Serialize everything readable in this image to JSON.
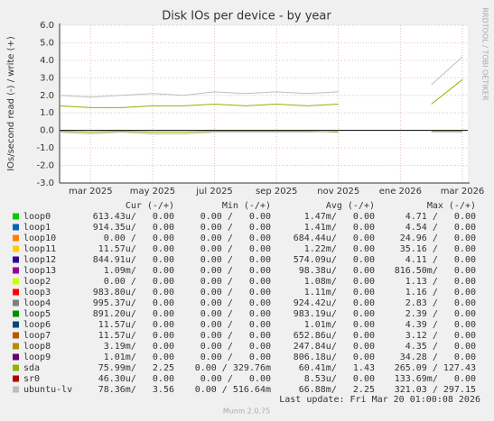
{
  "chart_data": {
    "type": "line",
    "title": "Disk IOs per device - by year",
    "y_label": "IOs/second read (-) / write (+)",
    "side_label": "RRDTOOL / TOBI OETIKER",
    "footer": "Munin 2.0.75",
    "last_update": "Last update: Fri Mar 20 01:00:08 2026",
    "grid": true,
    "ylim": [
      -3,
      6
    ],
    "yticks": [
      {
        "value": 6,
        "label": "6.0"
      },
      {
        "value": 5,
        "label": "5.0"
      },
      {
        "value": 4,
        "label": "4.0"
      },
      {
        "value": 3,
        "label": "3.0"
      },
      {
        "value": 2,
        "label": "2.0"
      },
      {
        "value": 1,
        "label": "1.0"
      },
      {
        "value": 0,
        "label": "0.0"
      },
      {
        "value": -1,
        "label": "-1.0"
      },
      {
        "value": -2,
        "label": "-2.0"
      },
      {
        "value": -3,
        "label": "-3.0"
      }
    ],
    "xlim": [
      "2025-02",
      "2026-03"
    ],
    "xticks": [
      {
        "value": "2025-03",
        "label": "mar 2025"
      },
      {
        "value": "2025-05",
        "label": "may 2025"
      },
      {
        "value": "2025-07",
        "label": "jul 2025"
      },
      {
        "value": "2025-09",
        "label": "sep 2025"
      },
      {
        "value": "2025-11",
        "label": "nov 2025"
      },
      {
        "value": "2026-01",
        "label": "ene 2026"
      },
      {
        "value": "2026-03",
        "label": "mar 2026"
      }
    ],
    "x": [
      "2025-02",
      "2025-03",
      "2025-04",
      "2025-05",
      "2025-06",
      "2025-07",
      "2025-08",
      "2025-09",
      "2025-10",
      "2025-11",
      "2025-12",
      "2026-01",
      "2026-02",
      "2026-03"
    ],
    "columns": [
      "Cur (-/+)",
      "Min (-/+)",
      "Avg (-/+)",
      "Max (-/+)"
    ],
    "series": [
      {
        "name": "loop0",
        "color": "#00cc00",
        "cells": [
          "613.43u/   0.00",
          "0.00 /   0.00",
          "1.47m/   0.00",
          "4.71 /   0.00"
        ]
      },
      {
        "name": "loop1",
        "color": "#0066b3",
        "cells": [
          "914.35u/   0.00",
          "0.00 /   0.00",
          "1.41m/   0.00",
          "4.54 /   0.00"
        ]
      },
      {
        "name": "loop10",
        "color": "#ff8000",
        "cells": [
          "0.00 /   0.00",
          "0.00 /   0.00",
          "684.44u/   0.00",
          "24.96 /   0.00"
        ]
      },
      {
        "name": "loop11",
        "color": "#ffcc00",
        "cells": [
          "11.57u/   0.00",
          "0.00 /   0.00",
          "1.22m/   0.00",
          "35.16 /   0.00"
        ]
      },
      {
        "name": "loop12",
        "color": "#330099",
        "cells": [
          "844.91u/   0.00",
          "0.00 /   0.00",
          "574.09u/   0.00",
          "4.11 /   0.00"
        ]
      },
      {
        "name": "loop13",
        "color": "#990099",
        "cells": [
          "1.09m/   0.00",
          "0.00 /   0.00",
          "98.38u/   0.00",
          "816.50m/   0.00"
        ]
      },
      {
        "name": "loop2",
        "color": "#ccff00",
        "cells": [
          "0.00 /   0.00",
          "0.00 /   0.00",
          "1.08m/   0.00",
          "1.13 /   0.00"
        ]
      },
      {
        "name": "loop3",
        "color": "#ff0000",
        "cells": [
          "983.80u/   0.00",
          "0.00 /   0.00",
          "1.11m/   0.00",
          "1.16 /   0.00"
        ]
      },
      {
        "name": "loop4",
        "color": "#808080",
        "cells": [
          "995.37u/   0.00",
          "0.00 /   0.00",
          "924.42u/   0.00",
          "2.83 /   0.00"
        ]
      },
      {
        "name": "loop5",
        "color": "#008f00",
        "cells": [
          "891.20u/   0.00",
          "0.00 /   0.00",
          "983.19u/   0.00",
          "2.39 /   0.00"
        ]
      },
      {
        "name": "loop6",
        "color": "#00487d",
        "cells": [
          "11.57u/   0.00",
          "0.00 /   0.00",
          "1.01m/   0.00",
          "4.39 /   0.00"
        ]
      },
      {
        "name": "loop7",
        "color": "#b35a00",
        "cells": [
          "11.57u/   0.00",
          "0.00 /   0.00",
          "652.86u/   0.00",
          "3.12 /   0.00"
        ]
      },
      {
        "name": "loop8",
        "color": "#b38f00",
        "cells": [
          "3.19m/   0.00",
          "0.00 /   0.00",
          "247.84u/   0.00",
          "4.35 /   0.00"
        ]
      },
      {
        "name": "loop9",
        "color": "#6b006b",
        "cells": [
          "1.01m/   0.00",
          "0.00 /   0.00",
          "806.18u/   0.00",
          "34.28 /   0.00"
        ]
      },
      {
        "name": "sda",
        "color": "#8fb300",
        "cells": [
          "75.99m/   2.25",
          "0.00 / 329.76m",
          "60.41m/   1.43",
          "265.09 / 127.43"
        ],
        "write": [
          1.4,
          1.3,
          1.3,
          1.4,
          1.4,
          1.5,
          1.4,
          1.5,
          1.4,
          1.5,
          null,
          null,
          1.5,
          2.9
        ],
        "read": [
          -0.05,
          -0.1,
          -0.05,
          -0.1,
          -0.1,
          -0.05,
          -0.05,
          -0.05,
          -0.05,
          -0.1,
          null,
          null,
          -0.05,
          -0.05
        ]
      },
      {
        "name": "sr0",
        "color": "#b30000",
        "cells": [
          "46.30u/   0.00",
          "0.00 /   0.00",
          "8.53u/   0.00",
          "133.69m/   0.00"
        ]
      },
      {
        "name": "ubuntu-lv",
        "color": "#bebebe",
        "cells": [
          "78.36m/   3.56",
          "0.00 / 516.64m",
          "66.88m/   2.25",
          "321.03 / 297.15"
        ],
        "write": [
          2.0,
          1.9,
          2.0,
          2.1,
          2.0,
          2.2,
          2.1,
          2.2,
          2.1,
          2.2,
          null,
          null,
          2.6,
          4.2
        ],
        "read": [
          -0.1,
          -0.2,
          -0.1,
          -0.2,
          -0.2,
          -0.1,
          -0.1,
          -0.1,
          -0.1,
          -0.05,
          null,
          null,
          -0.1,
          -0.1
        ]
      }
    ]
  }
}
